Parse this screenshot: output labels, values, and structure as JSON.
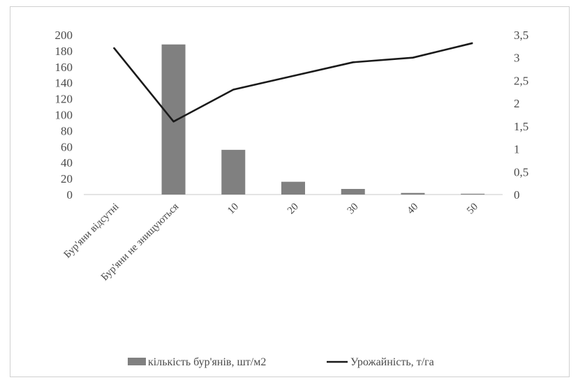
{
  "chart_data": {
    "type": "bar",
    "categories": [
      "Бур'яни відсутні",
      "Бур'яни не знищуються",
      "10",
      "20",
      "30",
      "40",
      "50"
    ],
    "series": [
      {
        "name": "кількість  бур'янів, шт/м2",
        "kind": "bar",
        "axis": "left",
        "color": "#808080",
        "values": [
          0,
          188,
          56,
          16,
          7,
          2,
          1
        ]
      },
      {
        "name": "Урожайність,  т/га",
        "kind": "line",
        "axis": "right",
        "color": "#1a1a1a",
        "values": [
          3.22,
          1.6,
          2.3,
          2.6,
          2.9,
          3.0,
          3.32
        ]
      }
    ],
    "ylim_left": [
      0,
      200
    ],
    "yticks_left": [
      "0",
      "20",
      "40",
      "60",
      "80",
      "100",
      "120",
      "140",
      "160",
      "180",
      "200"
    ],
    "ylim_right": [
      0,
      3.5
    ],
    "yticks_right": [
      "0",
      "0,5",
      "1",
      "1,5",
      "2",
      "2,5",
      "3",
      "3,5"
    ],
    "grid": false,
    "legend_position": "bottom"
  }
}
